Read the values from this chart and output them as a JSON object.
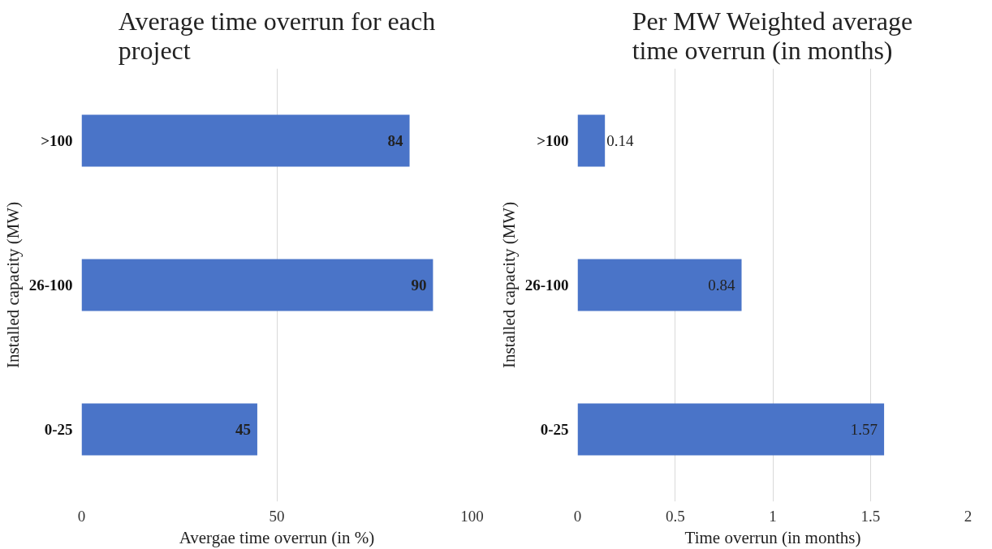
{
  "chart_data": [
    {
      "type": "bar",
      "orientation": "horizontal",
      "title": "Average time overrun for each\nproject",
      "xlabel": "Avergae time overrun (in %)",
      "ylabel": "Installed capacity (MW)",
      "categories": [
        ">100",
        "26-100",
        "0-25"
      ],
      "values": [
        84,
        90,
        45
      ],
      "color": "#4a74c8",
      "xlim": [
        0,
        100
      ],
      "xticks": [
        0,
        50,
        100
      ],
      "grid": "x",
      "data_labels": true
    },
    {
      "type": "bar",
      "orientation": "horizontal",
      "title": "Per MW Weighted average\ntime overrun (in months)",
      "xlabel": "Time overrun (in months)",
      "ylabel": "Installed capacity (MW)",
      "categories": [
        ">100",
        "26-100",
        "0-25"
      ],
      "values": [
        0.14,
        0.84,
        1.57
      ],
      "color": "#4a74c8",
      "xlim": [
        0,
        2
      ],
      "xticks": [
        0,
        0.5,
        1,
        1.5,
        2
      ],
      "grid": "x",
      "data_labels": true
    }
  ]
}
